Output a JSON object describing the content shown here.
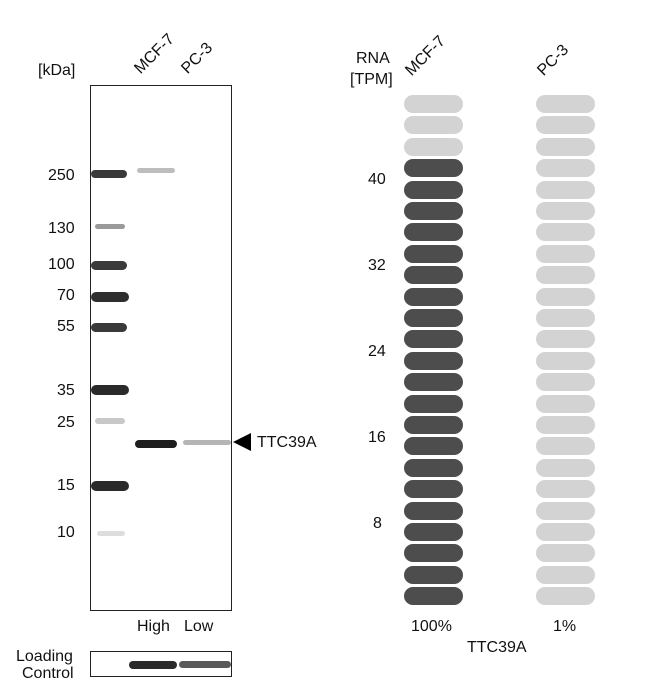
{
  "blot": {
    "unit_label": "[kDa]",
    "lanes": [
      "MCF-7",
      "PC-3"
    ],
    "markers": [
      "250",
      "130",
      "100",
      "70",
      "55",
      "35",
      "25",
      "15",
      "10"
    ],
    "target_label": "TTC39A",
    "expression_labels": [
      "High",
      "Low"
    ],
    "loading_control_label": [
      "Loading",
      "Control"
    ]
  },
  "rna": {
    "title": [
      "RNA",
      "[TPM]"
    ],
    "columns": [
      "MCF-7",
      "PC-3"
    ],
    "axis_ticks": [
      "40",
      "32",
      "24",
      "16",
      "8"
    ],
    "percent_labels": [
      "100%",
      "1%"
    ],
    "gene": "TTC39A",
    "bar": {
      "total_segments": 24,
      "mcf7_filled_segments": 21,
      "pc3_filled_segments": 0
    },
    "colors": {
      "filled": "#4d4d4d",
      "empty": "#d3d3d3"
    }
  }
}
